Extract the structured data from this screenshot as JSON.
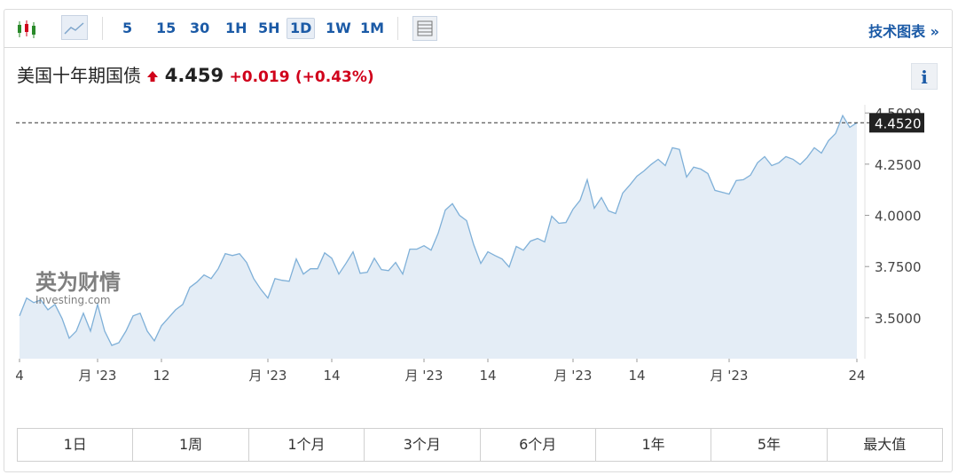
{
  "toolbar": {
    "intervals": [
      "5",
      "15",
      "30",
      "1H",
      "5H",
      "1D",
      "1W",
      "1M"
    ],
    "link": "技术图表 »"
  },
  "instrument": {
    "name": "美国十年期国债",
    "price": "4.459",
    "change": "+0.019",
    "change_pct": "(+0.43%)",
    "info": "i"
  },
  "watermark": {
    "brand": "英为财情",
    "site": "Investing.com"
  },
  "chart_data": {
    "type": "area",
    "color": "#7fb0d8",
    "fill": "#e4edf6",
    "values": [
      3.509,
      3.596,
      3.574,
      3.587,
      3.539,
      3.565,
      3.496,
      3.4,
      3.435,
      3.522,
      3.435,
      3.565,
      3.435,
      3.365,
      3.378,
      3.435,
      3.509,
      3.522,
      3.435,
      3.387,
      3.461,
      3.5,
      3.539,
      3.565,
      3.648,
      3.674,
      3.709,
      3.691,
      3.739,
      3.813,
      3.804,
      3.813,
      3.77,
      3.691,
      3.639,
      3.596,
      3.691,
      3.683,
      3.678,
      3.787,
      3.713,
      3.739,
      3.739,
      3.817,
      3.791,
      3.713,
      3.765,
      3.822,
      3.717,
      3.722,
      3.791,
      3.735,
      3.73,
      3.77,
      3.713,
      3.835,
      3.835,
      3.852,
      3.83,
      3.913,
      4.026,
      4.057,
      4.0,
      3.974,
      3.857,
      3.765,
      3.822,
      3.804,
      3.787,
      3.748,
      3.848,
      3.83,
      3.874,
      3.887,
      3.87,
      3.996,
      3.961,
      3.965,
      4.03,
      4.074,
      4.174,
      4.035,
      4.087,
      4.022,
      4.009,
      4.109,
      4.148,
      4.191,
      4.217,
      4.248,
      4.274,
      4.243,
      4.33,
      4.322,
      4.187,
      4.235,
      4.226,
      4.204,
      4.122,
      4.113,
      4.104,
      4.17,
      4.174,
      4.196,
      4.257,
      4.287,
      4.243,
      4.257,
      4.287,
      4.274,
      4.248,
      4.283,
      4.33,
      4.304,
      4.365,
      4.4,
      4.487,
      4.43,
      4.452
    ],
    "xticks": [
      {
        "value": 0,
        "label": "4"
      },
      {
        "value": 11,
        "label": "月 '23"
      },
      {
        "value": 20,
        "label": "12"
      },
      {
        "value": 35,
        "label": "月 '23"
      },
      {
        "value": 44,
        "label": "14"
      },
      {
        "value": 57,
        "label": "月 '23"
      },
      {
        "value": 66,
        "label": "14"
      },
      {
        "value": 78,
        "label": "月 '23"
      },
      {
        "value": 87,
        "label": "14"
      },
      {
        "value": 100,
        "label": "月 '23"
      },
      {
        "value": 118,
        "label": "24"
      }
    ],
    "ylim": [
      3.3,
      4.54
    ],
    "yticks": [
      {
        "value": 4.5,
        "label": "4.5000"
      },
      {
        "value": 4.25,
        "label": "4.2500"
      },
      {
        "value": 4.0,
        "label": "4.0000"
      },
      {
        "value": 3.75,
        "label": "3.7500"
      },
      {
        "value": 3.5,
        "label": "3.5000"
      }
    ],
    "price_line": {
      "value": 4.452,
      "label": "4.4520"
    }
  },
  "ranges": [
    "1日",
    "1周",
    "1个月",
    "3个月",
    "6个月",
    "1年",
    "5年",
    "最大值"
  ]
}
